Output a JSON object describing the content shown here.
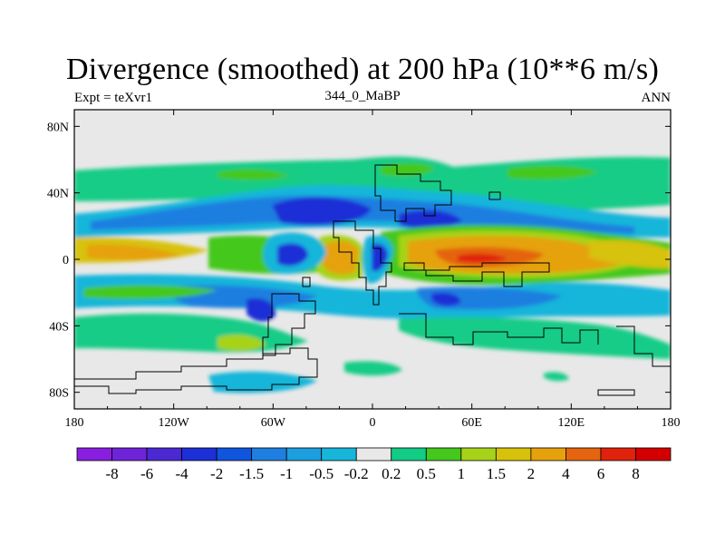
{
  "title": "Divergence (smoothed) at 200 hPa (10**6 m/s)",
  "subtitle_left": "Expt = teXvr1",
  "subtitle_center": "344_0_MaBP",
  "subtitle_right": "ANN",
  "chart_data": {
    "type": "heatmap",
    "title": "Divergence (smoothed) at 200 hPa (10**6 m/s)",
    "variable": "Divergence (smoothed) at 200 hPa",
    "units": "10**6 m/s",
    "xlim": [
      -180,
      180
    ],
    "ylim": [
      -90,
      90
    ],
    "x_ticks": [
      {
        "value": -180,
        "label": "180"
      },
      {
        "value": -120,
        "label": "120W"
      },
      {
        "value": -60,
        "label": "60W"
      },
      {
        "value": 0,
        "label": "0"
      },
      {
        "value": 60,
        "label": "60E"
      },
      {
        "value": 120,
        "label": "120E"
      },
      {
        "value": 180,
        "label": "180"
      }
    ],
    "y_ticks": [
      {
        "value": 80,
        "label": "80N"
      },
      {
        "value": 40,
        "label": "40N"
      },
      {
        "value": 0,
        "label": "0"
      },
      {
        "value": -40,
        "label": "40S"
      },
      {
        "value": -80,
        "label": "80S"
      }
    ],
    "colorbar": {
      "levels": [
        -8,
        -6,
        -4,
        -2,
        -1.5,
        -1,
        -0.5,
        -0.2,
        0.2,
        0.5,
        1,
        1.5,
        2,
        4,
        6,
        8
      ],
      "labels": [
        "-8",
        "-6",
        "-4",
        "-2",
        "-1.5",
        "-1",
        "-0.5",
        "-0.2",
        "0.2",
        "0.5",
        "1",
        "1.5",
        "2",
        "4",
        "6",
        "8"
      ],
      "colors": [
        "#8a1ee0",
        "#6f23d8",
        "#4b29d2",
        "#1d2fd6",
        "#0f55de",
        "#1f7fe0",
        "#1d9ede",
        "#17b5da",
        "#e8e8e8",
        "#12cc86",
        "#44c81e",
        "#a6d319",
        "#d7c20b",
        "#e5a20c",
        "#e5640f",
        "#e0220c",
        "#d40000"
      ]
    }
  }
}
